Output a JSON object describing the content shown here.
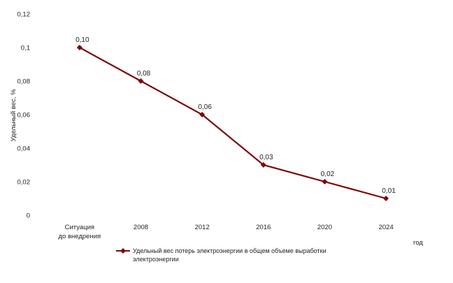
{
  "chart_data": {
    "type": "line",
    "categories": [
      "Ситуация до внедрения",
      "2008",
      "2012",
      "2016",
      "2020",
      "2024"
    ],
    "series": [
      {
        "name": "Удельный вес потерь электроэнергии в общем объеме выработки электроэнергии",
        "values": [
          0.1,
          0.08,
          0.06,
          0.03,
          0.02,
          0.01
        ],
        "data_labels": [
          "0,10",
          "0,08",
          "0,06",
          "0,03",
          "0,02",
          "0,01"
        ],
        "color": "#7a0a0a"
      }
    ],
    "ylabel": "Удельный вес, %",
    "xlabel": "",
    "x_unit": "год",
    "ylim": [
      0,
      0.12
    ],
    "y_ticks": [
      0,
      0.02,
      0.04,
      0.06,
      0.08,
      0.1,
      0.12
    ],
    "y_tick_labels": [
      "0",
      "0,02",
      "0,04",
      "0,06",
      "0,08",
      "0,1",
      "0,12"
    ],
    "x_tick_labels": [
      [
        "Ситуация",
        "до внедрения"
      ],
      [
        "2008"
      ],
      [
        "2012"
      ],
      [
        "2016"
      ],
      [
        "2020"
      ],
      [
        "2024"
      ]
    ],
    "grid": false,
    "legend_position": "bottom-left",
    "marker": "diamond"
  }
}
